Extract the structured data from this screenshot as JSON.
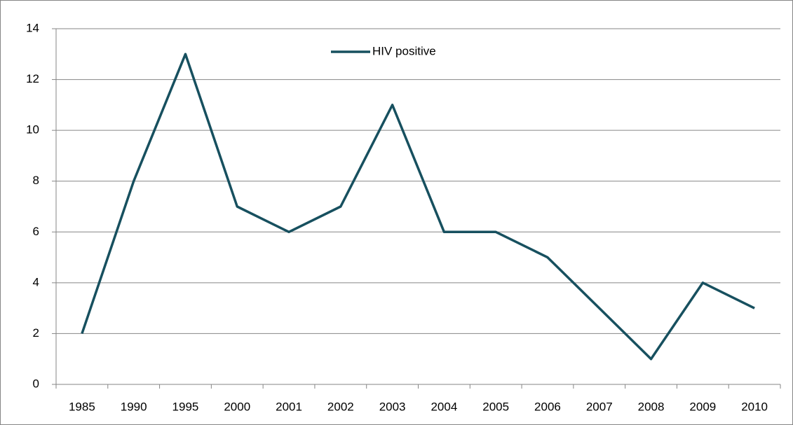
{
  "chart_data": {
    "type": "line",
    "categories": [
      "1985",
      "1990",
      "1995",
      "2000",
      "2001",
      "2002",
      "2003",
      "2004",
      "2005",
      "2006",
      "2007",
      "2008",
      "2009",
      "2010"
    ],
    "series": [
      {
        "name": "HIV positive",
        "color": "#17505f",
        "values": [
          2,
          8,
          13,
          7,
          6,
          7,
          11,
          6,
          6,
          5,
          3,
          1,
          4,
          3
        ]
      }
    ],
    "ylim": [
      0,
      14
    ],
    "yticks": [
      0,
      2,
      4,
      6,
      8,
      10,
      12,
      14
    ],
    "grid": true,
    "legend": "top"
  }
}
